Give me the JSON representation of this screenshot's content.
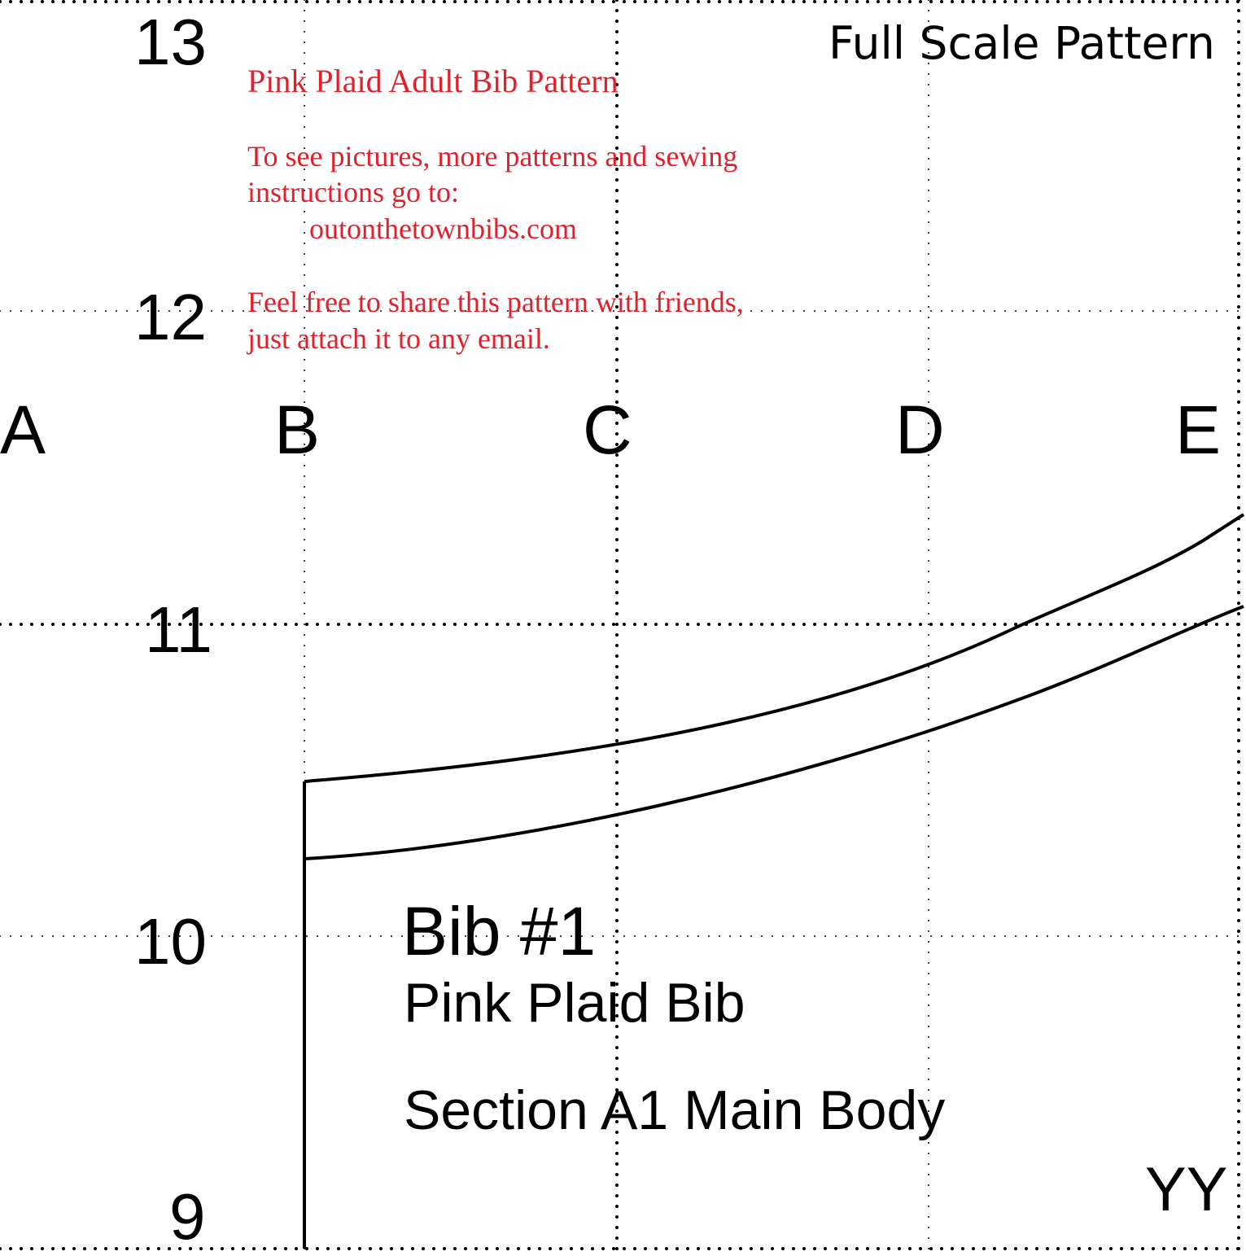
{
  "header": {
    "full_scale_label": "Full Scale Pattern"
  },
  "info": {
    "title": "Pink Plaid Adult Bib Pattern",
    "line1": "To see pictures, more patterns and sewing",
    "line2": "instructions go to:",
    "url": "outonthetownbibs.com",
    "share1": "Feel free to share this pattern with friends,",
    "share2": "just attach it to any email.",
    "color": "#e0212b"
  },
  "row_labels": [
    "13",
    "12",
    "11",
    "10",
    "9"
  ],
  "column_labels": [
    "A",
    "B",
    "C",
    "D",
    "E"
  ],
  "piece": {
    "name": "Bib #1",
    "subtitle": "Pink Plaid Bib",
    "section": "Section A1 Main Body",
    "corner_code": "YY"
  }
}
